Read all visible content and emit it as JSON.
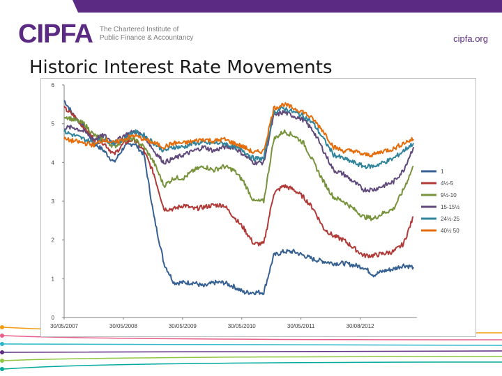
{
  "header": {
    "logo_text": "CIPFA",
    "logo_sub_line1": "The Chartered Institute of",
    "logo_sub_line2": "Public Finance & Accountancy",
    "website": "cipfa.org"
  },
  "page_title": "Historic Interest Rate Movements",
  "colors": {
    "brand_purple": "#5b2a82",
    "gridline": "#d9d9d9"
  },
  "chart_data": {
    "type": "line",
    "title": "Historic Interest Rate Movements",
    "xlabel": "",
    "ylabel": "",
    "ylim": [
      0,
      6
    ],
    "yticks": [
      0,
      1,
      2,
      3,
      4,
      5,
      6
    ],
    "xticks": [
      "30/05/2007",
      "30/05/2008",
      "30/05/2009",
      "30/05/2010",
      "30/05/2011",
      "30/08/2012"
    ],
    "x": [
      "2007-05",
      "2007-07",
      "2007-09",
      "2007-11",
      "2008-01",
      "2008-03",
      "2008-05",
      "2008-07",
      "2008-09",
      "2008-11",
      "2009-01",
      "2009-03",
      "2009-05",
      "2009-07",
      "2009-09",
      "2009-11",
      "2010-01",
      "2010-03",
      "2010-05",
      "2010-07",
      "2010-09",
      "2010-11",
      "2011-01",
      "2011-03",
      "2011-05",
      "2011-07",
      "2011-09",
      "2011-11",
      "2012-01",
      "2012-03",
      "2012-05",
      "2012-07",
      "2012-09",
      "2012-11",
      "2013-01",
      "2013-03"
    ],
    "series": [
      {
        "name": "1",
        "color": "#376092",
        "values": [
          5.6,
          5.2,
          4.9,
          4.5,
          4.3,
          4.0,
          4.4,
          4.5,
          4.2,
          2.6,
          1.4,
          0.9,
          0.9,
          0.9,
          0.8,
          0.9,
          0.9,
          0.8,
          0.65,
          0.65,
          0.65,
          1.6,
          1.7,
          1.7,
          1.6,
          1.5,
          1.45,
          1.4,
          1.4,
          1.35,
          1.3,
          1.1,
          1.2,
          1.25,
          1.35,
          1.3
        ]
      },
      {
        "name": "4½-5",
        "color": "#b03a37",
        "values": [
          5.4,
          5.2,
          4.9,
          4.6,
          4.5,
          4.2,
          4.5,
          4.6,
          4.3,
          3.7,
          2.8,
          2.8,
          2.9,
          2.8,
          2.85,
          2.9,
          2.9,
          2.6,
          2.3,
          1.9,
          1.9,
          3.2,
          3.4,
          3.3,
          3.1,
          2.8,
          2.3,
          2.1,
          2.0,
          1.8,
          1.6,
          1.6,
          1.65,
          1.7,
          1.9,
          2.6
        ]
      },
      {
        "name": "9½-10",
        "color": "#77933c",
        "values": [
          5.2,
          5.1,
          5.0,
          4.7,
          4.6,
          4.4,
          4.6,
          4.6,
          4.4,
          4.0,
          3.4,
          3.6,
          3.6,
          3.8,
          3.9,
          3.8,
          3.9,
          3.8,
          3.5,
          3.0,
          3.0,
          4.6,
          4.8,
          4.7,
          4.5,
          4.0,
          3.5,
          3.1,
          3.0,
          2.8,
          2.6,
          2.55,
          2.7,
          2.8,
          3.3,
          3.9
        ]
      },
      {
        "name": "15-15½",
        "color": "#604a7b",
        "values": [
          4.9,
          4.9,
          4.8,
          4.6,
          4.7,
          4.5,
          4.7,
          4.8,
          4.7,
          4.3,
          4.0,
          4.1,
          4.2,
          4.3,
          4.4,
          4.3,
          4.4,
          4.4,
          4.2,
          4.0,
          4.0,
          5.2,
          5.3,
          5.2,
          5.1,
          4.8,
          4.3,
          3.8,
          3.7,
          3.5,
          3.3,
          3.3,
          3.4,
          3.5,
          3.8,
          4.4
        ]
      },
      {
        "name": "24½-25",
        "color": "#31849b",
        "values": [
          4.8,
          4.7,
          4.6,
          4.5,
          4.6,
          4.5,
          4.6,
          4.8,
          4.7,
          4.5,
          4.3,
          4.4,
          4.4,
          4.5,
          4.5,
          4.5,
          4.5,
          4.4,
          4.3,
          4.1,
          4.1,
          5.3,
          5.4,
          5.3,
          5.2,
          5.0,
          4.6,
          4.2,
          4.1,
          4.0,
          3.9,
          3.9,
          4.0,
          4.1,
          4.3,
          4.5
        ]
      },
      {
        "name": "40½ 50",
        "color": "#e46c0a",
        "values": [
          4.6,
          4.55,
          4.5,
          4.45,
          4.6,
          4.5,
          4.6,
          4.7,
          4.6,
          4.5,
          4.4,
          4.5,
          4.5,
          4.55,
          4.6,
          4.55,
          4.6,
          4.5,
          4.4,
          4.25,
          4.3,
          5.4,
          5.5,
          5.4,
          5.3,
          5.1,
          4.8,
          4.4,
          4.3,
          4.3,
          4.2,
          4.2,
          4.3,
          4.35,
          4.5,
          4.6
        ]
      }
    ],
    "grid": false,
    "legend_position": "right"
  }
}
